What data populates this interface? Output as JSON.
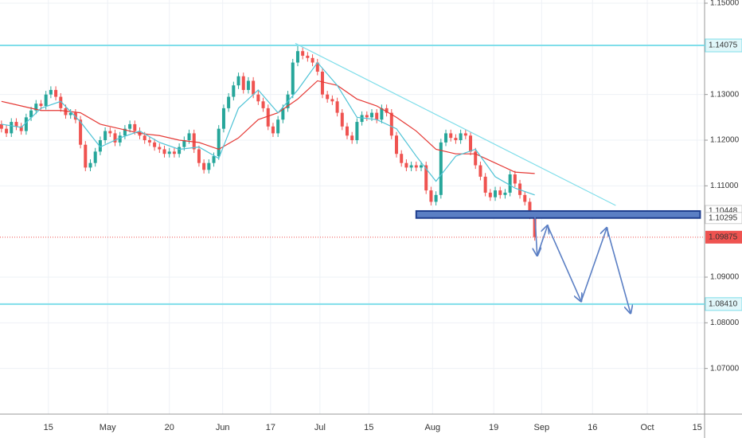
{
  "chart_data": {
    "type": "candlestick",
    "up_color": "#26a69a",
    "down_color": "#ef5350",
    "xlim": [
      -0.3,
      142.4
    ],
    "ylim": [
      1.06,
      1.1507
    ],
    "grid": true,
    "open": [
      1.1235,
      1.1225,
      1.1215,
      1.124,
      1.123,
      1.122,
      1.125,
      1.1265,
      1.128,
      1.1275,
      1.13,
      1.131,
      1.1295,
      1.127,
      1.1255,
      1.126,
      1.1245,
      1.119,
      1.114,
      1.115,
      1.1175,
      1.12,
      1.122,
      1.1215,
      1.1195,
      1.121,
      1.1225,
      1.1235,
      1.122,
      1.121,
      1.12,
      1.1195,
      1.1185,
      1.118,
      1.117,
      1.1175,
      1.117,
      1.1185,
      1.12,
      1.1215,
      1.118,
      1.115,
      1.1135,
      1.115,
      1.1165,
      1.1225,
      1.127,
      1.1295,
      1.132,
      1.134,
      1.131,
      1.133,
      1.13,
      1.1285,
      1.127,
      1.123,
      1.1215,
      1.1245,
      1.127,
      1.13,
      1.137,
      1.1395,
      1.1385,
      1.138,
      1.137,
      1.135,
      1.13,
      1.129,
      1.1285,
      1.126,
      1.123,
      1.121,
      1.12,
      1.124,
      1.1255,
      1.125,
      1.126,
      1.1245,
      1.127,
      1.126,
      1.121,
      1.117,
      1.115,
      1.114,
      1.1145,
      1.114,
      1.1145,
      1.109,
      1.1065,
      1.108,
      1.1195,
      1.1215,
      1.1205,
      1.12,
      1.1215,
      1.121,
      1.1175,
      1.1145,
      1.112,
      1.1085,
      1.1075,
      1.109,
      1.108,
      1.1085,
      1.1125,
      1.1105,
      1.108,
      1.1065,
      1.1035
    ],
    "high": [
      1.1243,
      1.1233,
      1.1248,
      1.1248,
      1.1238,
      1.1258,
      1.1273,
      1.1288,
      1.1288,
      1.1308,
      1.1318,
      1.1318,
      1.1303,
      1.1278,
      1.1268,
      1.1268,
      1.1253,
      1.1198,
      1.1158,
      1.1183,
      1.1208,
      1.1228,
      1.1228,
      1.1223,
      1.1218,
      1.1233,
      1.1243,
      1.1243,
      1.1228,
      1.1218,
      1.1208,
      1.1203,
      1.1193,
      1.1188,
      1.1183,
      1.1183,
      1.1193,
      1.1208,
      1.1223,
      1.1223,
      1.1188,
      1.1158,
      1.1158,
      1.1173,
      1.1233,
      1.1278,
      1.1303,
      1.1328,
      1.1348,
      1.1348,
      1.1338,
      1.1338,
      1.1308,
      1.1293,
      1.1278,
      1.1238,
      1.1253,
      1.1278,
      1.1308,
      1.1378,
      1.1407,
      1.1403,
      1.1393,
      1.1388,
      1.1378,
      1.1358,
      1.1308,
      1.1298,
      1.1293,
      1.1268,
      1.1238,
      1.1218,
      1.1248,
      1.1263,
      1.1263,
      1.1268,
      1.1268,
      1.1278,
      1.1278,
      1.1268,
      1.1218,
      1.1178,
      1.1158,
      1.1153,
      1.1153,
      1.1153,
      1.1153,
      1.1098,
      1.1088,
      1.1203,
      1.1223,
      1.1223,
      1.1213,
      1.1223,
      1.1223,
      1.1218,
      1.1183,
      1.1153,
      1.1128,
      1.1093,
      1.1098,
      1.1098,
      1.1093,
      1.1133,
      1.1133,
      1.1113,
      1.1088,
      1.1073,
      1.1043
    ],
    "low": [
      1.1217,
      1.1207,
      1.1207,
      1.1222,
      1.1212,
      1.1212,
      1.1242,
      1.1257,
      1.1267,
      1.1267,
      1.1292,
      1.1287,
      1.1262,
      1.1247,
      1.1247,
      1.1237,
      1.1182,
      1.1132,
      1.1132,
      1.1142,
      1.1167,
      1.1192,
      1.1207,
      1.1187,
      1.1187,
      1.1202,
      1.1217,
      1.1212,
      1.1202,
      1.1192,
      1.1187,
      1.1177,
      1.1172,
      1.1162,
      1.1162,
      1.1162,
      1.1162,
      1.1177,
      1.1192,
      1.1172,
      1.1142,
      1.1127,
      1.1127,
      1.1142,
      1.1157,
      1.1217,
      1.1262,
      1.1287,
      1.1312,
      1.1302,
      1.1302,
      1.1292,
      1.1277,
      1.1262,
      1.1222,
      1.1207,
      1.1207,
      1.1237,
      1.1262,
      1.1292,
      1.1362,
      1.1377,
      1.1372,
      1.1362,
      1.1342,
      1.1292,
      1.1282,
      1.1277,
      1.1252,
      1.1222,
      1.1202,
      1.1192,
      1.1192,
      1.1232,
      1.1242,
      1.1242,
      1.1237,
      1.1237,
      1.1252,
      1.1202,
      1.1162,
      1.1142,
      1.1132,
      1.1132,
      1.1132,
      1.1132,
      1.1082,
      1.1057,
      1.1057,
      1.1072,
      1.1187,
      1.1197,
      1.1192,
      1.1192,
      1.1202,
      1.1167,
      1.1137,
      1.1112,
      1.1077,
      1.1067,
      1.1067,
      1.1072,
      1.1072,
      1.1077,
      1.1097,
      1.1072,
      1.1057,
      1.1027,
      1.098
    ],
    "close": [
      1.1225,
      1.1215,
      1.124,
      1.123,
      1.122,
      1.125,
      1.1265,
      1.128,
      1.1275,
      1.13,
      1.131,
      1.1295,
      1.127,
      1.1255,
      1.126,
      1.1245,
      1.119,
      1.114,
      1.115,
      1.1175,
      1.12,
      1.122,
      1.1215,
      1.1195,
      1.121,
      1.1225,
      1.1235,
      1.122,
      1.121,
      1.12,
      1.1195,
      1.1185,
      1.118,
      1.117,
      1.1175,
      1.117,
      1.1185,
      1.12,
      1.1215,
      1.118,
      1.115,
      1.1135,
      1.115,
      1.1165,
      1.1225,
      1.127,
      1.1295,
      1.132,
      1.134,
      1.131,
      1.133,
      1.13,
      1.1285,
      1.127,
      1.123,
      1.1215,
      1.1245,
      1.127,
      1.13,
      1.137,
      1.1395,
      1.1385,
      1.138,
      1.137,
      1.135,
      1.13,
      1.129,
      1.1285,
      1.126,
      1.123,
      1.121,
      1.12,
      1.124,
      1.1255,
      1.125,
      1.126,
      1.1245,
      1.127,
      1.126,
      1.121,
      1.117,
      1.115,
      1.114,
      1.1145,
      1.114,
      1.1145,
      1.109,
      1.1065,
      1.108,
      1.1195,
      1.1215,
      1.1205,
      1.12,
      1.1215,
      1.121,
      1.1175,
      1.1145,
      1.112,
      1.1085,
      1.1075,
      1.109,
      1.108,
      1.1085,
      1.1125,
      1.1105,
      1.108,
      1.1065,
      1.1035,
      1.0988
    ],
    "moving_averages": [
      {
        "color": "#e53935",
        "x": [
          0,
          4,
          8,
          12,
          16,
          20,
          24,
          28,
          32,
          36,
          40,
          44,
          48,
          52,
          56,
          60,
          64,
          68,
          72,
          76,
          80,
          84,
          88,
          92,
          96,
          100,
          104,
          108
        ],
        "values": [
          1.1285,
          1.1275,
          1.1265,
          1.1265,
          1.126,
          1.1235,
          1.1225,
          1.1215,
          1.121,
          1.12,
          1.1195,
          1.118,
          1.1205,
          1.1245,
          1.126,
          1.129,
          1.133,
          1.132,
          1.129,
          1.1275,
          1.125,
          1.122,
          1.118,
          1.117,
          1.117,
          1.115,
          1.113,
          1.1127
        ]
      },
      {
        "color": "#4fc3d6",
        "x": [
          0,
          4,
          8,
          12,
          16,
          20,
          24,
          28,
          32,
          36,
          40,
          44,
          48,
          52,
          56,
          60,
          64,
          68,
          72,
          76,
          80,
          84,
          88,
          92,
          96,
          100,
          104,
          108
        ],
        "values": [
          1.1235,
          1.1228,
          1.127,
          1.1285,
          1.124,
          1.1185,
          1.1205,
          1.122,
          1.1195,
          1.118,
          1.1185,
          1.116,
          1.127,
          1.131,
          1.126,
          1.131,
          1.137,
          1.132,
          1.125,
          1.1245,
          1.1225,
          1.1165,
          1.111,
          1.1165,
          1.118,
          1.112,
          1.1095,
          1.108
        ]
      }
    ],
    "yticks": [
      {
        "value": 1.15,
        "label": "1.15000"
      },
      {
        "value": 1.13,
        "label": "1.13000"
      },
      {
        "value": 1.12,
        "label": "1.12000"
      },
      {
        "value": 1.11,
        "label": "1.11000"
      },
      {
        "value": 1.09,
        "label": "1.09000"
      },
      {
        "value": 1.08,
        "label": "1.08000"
      },
      {
        "value": 1.07,
        "label": "1.07000"
      }
    ],
    "xticks": [
      {
        "value": 9.5,
        "label": "15"
      },
      {
        "value": 21.5,
        "label": "May"
      },
      {
        "value": 34,
        "label": "20"
      },
      {
        "value": 44.8,
        "label": "Jun"
      },
      {
        "value": 54.5,
        "label": "17"
      },
      {
        "value": 64.5,
        "label": "Jul"
      },
      {
        "value": 74.4,
        "label": "15"
      },
      {
        "value": 87.3,
        "label": "Aug"
      },
      {
        "value": 99.7,
        "label": "19"
      },
      {
        "value": 109.4,
        "label": "Sep"
      },
      {
        "value": 119.7,
        "label": "16"
      },
      {
        "value": 130.8,
        "label": "Oct"
      },
      {
        "value": 140.9,
        "label": "15"
      }
    ],
    "levels": [
      {
        "value": 1.14075,
        "color": "#80deea"
      },
      {
        "value": 1.0841,
        "label": "1.08410",
        "color": "#80deea"
      }
    ],
    "zone": {
      "x": [
        84,
        141.5
      ],
      "top": 1.10448,
      "bottom": 1.10295,
      "color": "#5b7fc4",
      "border": "#1f3f8f"
    },
    "last_price": {
      "value": 1.09875,
      "color": "#ef5350"
    },
    "trendline": {
      "x": [
        59.5,
        124.4
      ],
      "y": [
        1.1412,
        1.1057
      ],
      "color": "#80deea"
    },
    "arrow": {
      "x": [
        108,
        108.5,
        110.6,
        117.4,
        122.6,
        127.4
      ],
      "y": [
        1.104,
        1.0947,
        1.1013,
        1.0847,
        1.1008,
        1.0821
      ],
      "color": "#5b7fc4"
    }
  }
}
